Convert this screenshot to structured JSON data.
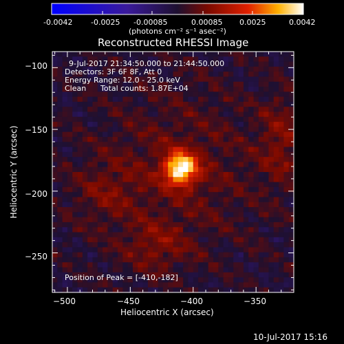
{
  "colorbar": {
    "ticks": [
      "-0.0042",
      "-0.0025",
      "-0.00085",
      "0.00085",
      "0.0025",
      "0.0042"
    ],
    "units": "(photons cm⁻² s⁻¹ asec⁻²)",
    "range": [
      -0.0042,
      0.0042
    ]
  },
  "chart_data": {
    "type": "heatmap",
    "title": "Reconstructed RHESSI Image",
    "xlabel": "Heliocentric X (arcsec)",
    "ylabel": "Heliocentric Y (arcsec)",
    "xlim": [
      -512,
      -320
    ],
    "ylim": [
      -282,
      -87
    ],
    "xticks": [
      -500,
      -450,
      -400,
      -350
    ],
    "yticks": [
      -100,
      -150,
      -200,
      -250
    ],
    "xtick_labels": [
      "−500",
      "−450",
      "−400",
      "−350"
    ],
    "ytick_labels": [
      "−100",
      "−150",
      "−200",
      "−250"
    ],
    "peak": {
      "x": -410,
      "y": -182
    },
    "colormap": "RHESSI hot/blue diverging",
    "annotations": {
      "time_range": "9-Jul-2017 21:34:50.000 to 21:44:50.000",
      "detectors": "Detectors: 3F 6F 8F, Att 0",
      "energy": "Energy Range: 12.0 - 25.0 keV",
      "method": "Clean",
      "counts": "Total counts: 1.87E+04",
      "peak_text": "Position of Peak = [-410,-182]"
    }
  },
  "footer": {
    "timestamp": "10-Jul-2017 15:16"
  }
}
